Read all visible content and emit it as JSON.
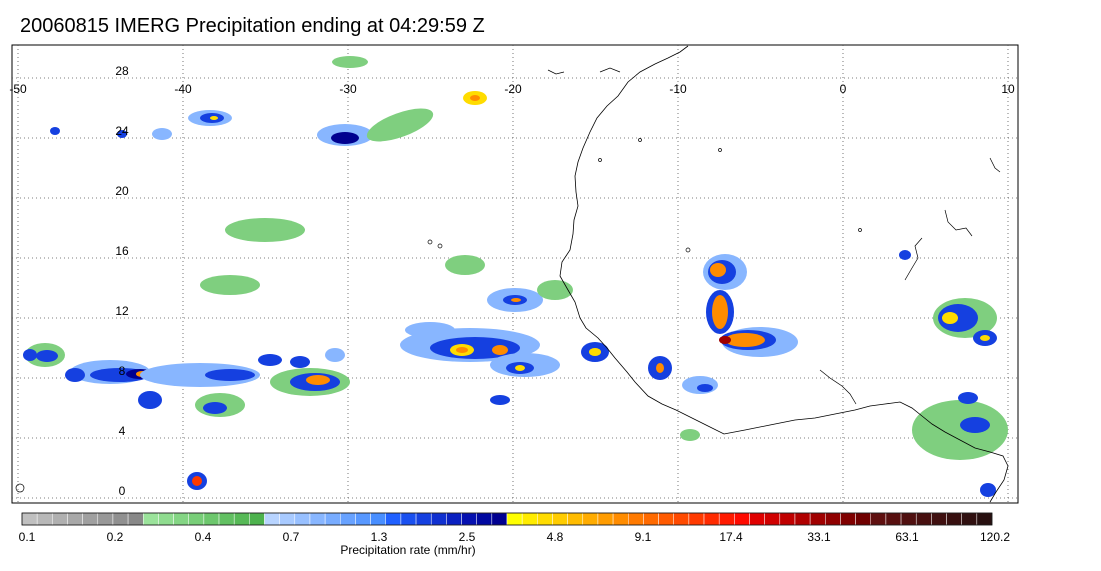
{
  "title": "20060815 IMERG Precipitation ending at 04:29:59 Z",
  "map": {
    "lon_ticks": [
      "-50",
      "-40",
      "-30",
      "-20",
      "-10",
      "0",
      "10"
    ],
    "lat_ticks": [
      "28",
      "24",
      "20",
      "16",
      "12",
      "8",
      "4",
      "0"
    ],
    "gridlines": true,
    "extent": {
      "lon": [
        -50,
        10
      ],
      "lat": [
        -0.5,
        29.5
      ]
    }
  },
  "colorbar": {
    "title": "Precipitation rate (mm/hr)",
    "labels": [
      "0.1",
      "0.2",
      "0.4",
      "0.7",
      "1.3",
      "2.5",
      "4.8",
      "9.1",
      "17.4",
      "33.1",
      "63.1",
      "120.2"
    ],
    "colors": [
      "#c0c0c0",
      "#b8b8b8",
      "#b0b0b0",
      "#a8a8a8",
      "#a0a0a0",
      "#989898",
      "#909090",
      "#888888",
      "#9be39b",
      "#8fdc8f",
      "#84d584",
      "#78ce78",
      "#6dc76d",
      "#62c062",
      "#57b957",
      "#4db24d",
      "#b8d4ff",
      "#a8caff",
      "#98c0ff",
      "#88b6ff",
      "#78acff",
      "#68a2ff",
      "#5898ff",
      "#488eff",
      "#2060ff",
      "#1a50f0",
      "#1540e0",
      "#1030d0",
      "#0a20c0",
      "#0510b0",
      "#0008a0",
      "#000090",
      "#ffff00",
      "#ffec00",
      "#ffdc00",
      "#ffcc00",
      "#ffbc00",
      "#ffac00",
      "#ff9c00",
      "#ff8c00",
      "#ff7a00",
      "#ff6a00",
      "#ff5a00",
      "#ff4a00",
      "#ff3a00",
      "#ff2a00",
      "#ff1a00",
      "#ff0a00",
      "#e00000",
      "#d00000",
      "#c00000",
      "#b00000",
      "#a00000",
      "#900000",
      "#800000",
      "#700000",
      "#601010",
      "#581010",
      "#501010",
      "#481010",
      "#401010",
      "#381010",
      "#301010",
      "#281010"
    ]
  },
  "precip_colors": {
    "green": "#7fcf7f",
    "lightblue": "#88b6ff",
    "blue": "#1540e0",
    "navy": "#000090",
    "yellow": "#ffdc00",
    "orange": "#ff8c00",
    "red": "#ff3a00",
    "darkred": "#a00000"
  }
}
